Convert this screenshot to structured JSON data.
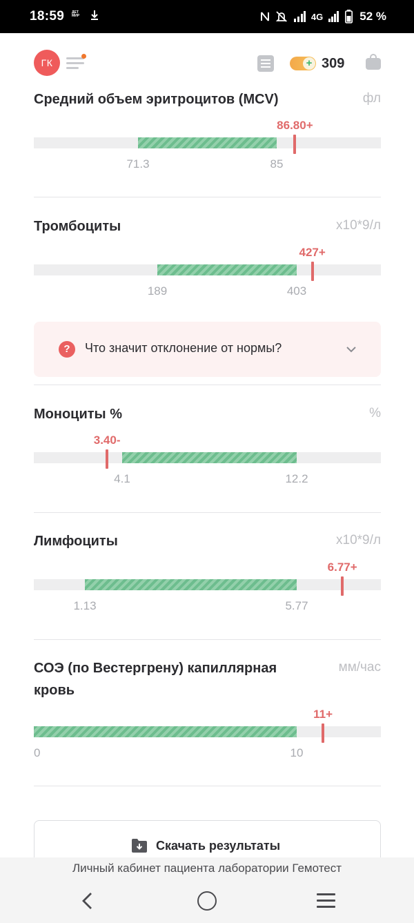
{
  "status_bar": {
    "time": "18:59",
    "app_badge": "ДЕТ\nМИР",
    "network": "4G",
    "battery": "52 %"
  },
  "header": {
    "avatar_initials": "ГК",
    "bonus_points": "309",
    "coin_plus": "+"
  },
  "metrics": [
    {
      "name": "Средний объем эритроцитов (MCV)",
      "unit": "фл",
      "value_label": "86.80+",
      "range_min": "71.3",
      "range_max": "85",
      "status": "high",
      "value": 86.8,
      "norm_min": 71.3,
      "norm_max": 85
    },
    {
      "name": "Тромбоциты",
      "unit": "x10*9/л",
      "value_label": "427+",
      "range_min": "189",
      "range_max": "403",
      "status": "high",
      "value": 427,
      "norm_min": 189,
      "norm_max": 403
    },
    {
      "name": "Моноциты %",
      "unit": "%",
      "value_label": "3.40-",
      "range_min": "4.1",
      "range_max": "12.2",
      "status": "low",
      "value": 3.4,
      "norm_min": 4.1,
      "norm_max": 12.2
    },
    {
      "name": "Лимфоциты",
      "unit": "x10*9/л",
      "value_label": "6.77+",
      "range_min": "1.13",
      "range_max": "5.77",
      "status": "high",
      "value": 6.77,
      "norm_min": 1.13,
      "norm_max": 5.77
    },
    {
      "name": "СОЭ (по Вестергрену) капиллярная кровь",
      "unit": "мм/час",
      "value_label": "11+",
      "range_min": "0",
      "range_max": "10",
      "status": "high",
      "value": 11,
      "norm_min": 0,
      "norm_max": 10
    }
  ],
  "info_box": {
    "question_mark": "?",
    "text": "Что значит отклонение от нормы?"
  },
  "download_button": {
    "label": "Скачать результаты"
  },
  "footer": {
    "caption": "Личный кабинет пациента лаборатории Гемотест"
  },
  "colors": {
    "accent_red": "#e06a6a",
    "norm_green": "#6dbd8e",
    "avatar": "#ef5b5b",
    "coin": "#f3a94a"
  }
}
